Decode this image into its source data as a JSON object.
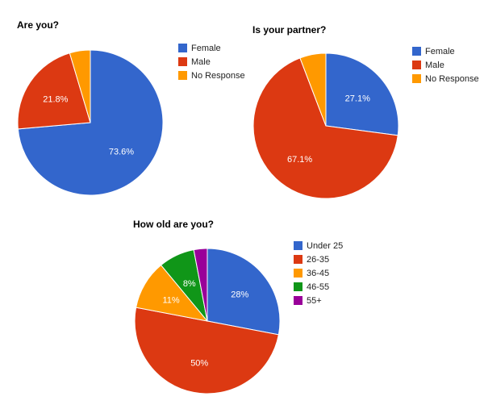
{
  "chart_data": [
    {
      "type": "pie",
      "title": "Are you?",
      "categories": [
        "Female",
        "Male",
        "No Response"
      ],
      "values": [
        73.6,
        21.8,
        4.6
      ],
      "slice_labels": [
        "73.6%",
        "21.8%",
        ""
      ],
      "colors": [
        "#3366cc",
        "#dc3912",
        "#ff9900"
      ],
      "legend_position": "right"
    },
    {
      "type": "pie",
      "title": "Is your partner?",
      "categories": [
        "Female",
        "Male",
        "No Response"
      ],
      "values": [
        27.1,
        67.1,
        5.8
      ],
      "slice_labels": [
        "27.1%",
        "67.1%",
        ""
      ],
      "colors": [
        "#3366cc",
        "#dc3912",
        "#ff9900"
      ],
      "legend_position": "right"
    },
    {
      "type": "pie",
      "title": "How old are you?",
      "categories": [
        "Under 25",
        "26-35",
        "36-45",
        "46-55",
        "55+"
      ],
      "values": [
        28,
        50,
        11,
        8,
        3
      ],
      "slice_labels": [
        "28%",
        "50%",
        "11%",
        "8%",
        ""
      ],
      "colors": [
        "#3366cc",
        "#dc3912",
        "#ff9900",
        "#109618",
        "#990099"
      ],
      "legend_position": "right"
    }
  ]
}
